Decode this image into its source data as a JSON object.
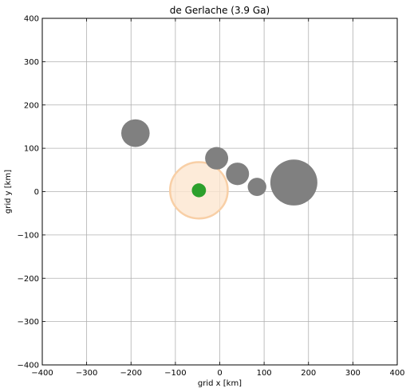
{
  "chart_data": {
    "type": "scatter",
    "title": "de Gerlache (3.9 Ga)",
    "xlabel": "grid x [km]",
    "ylabel": "grid y [km]",
    "xlim": [
      -400,
      400
    ],
    "ylim": [
      -400,
      400
    ],
    "xticks": [
      -400,
      -300,
      -200,
      -100,
      0,
      100,
      200,
      300,
      400
    ],
    "yticks": [
      -400,
      -300,
      -200,
      -100,
      0,
      100,
      200,
      300,
      400
    ],
    "xtick_labels": [
      "−400",
      "−300",
      "−200",
      "−100",
      "0",
      "100",
      "200",
      "300",
      "400"
    ],
    "ytick_labels": [
      "−400",
      "−300",
      "−200",
      "−100",
      "0",
      "100",
      "200",
      "300",
      "400"
    ],
    "grid": true,
    "colors": {
      "crater": "#808080",
      "halo_fill": "#fde6d0",
      "halo_edge": "#f8cfa6",
      "center": "#2ca02c",
      "grid": "#b0b0b0"
    },
    "series": [
      {
        "points": [
          {
            "x": -190,
            "y": 135,
            "r": 32
          },
          {
            "x": -7,
            "y": 77,
            "r": 26
          },
          {
            "x": 40,
            "y": 41,
            "r": 26
          },
          {
            "x": 84,
            "y": 11,
            "r": 21
          },
          {
            "x": 167,
            "y": 21,
            "r": 53
          }
        ]
      },
      {
        "points": [
          {
            "x": -47,
            "y": 3,
            "r": 65
          }
        ]
      },
      {
        "points": [
          {
            "x": -47,
            "y": 3,
            "r": 16
          }
        ]
      }
    ]
  }
}
